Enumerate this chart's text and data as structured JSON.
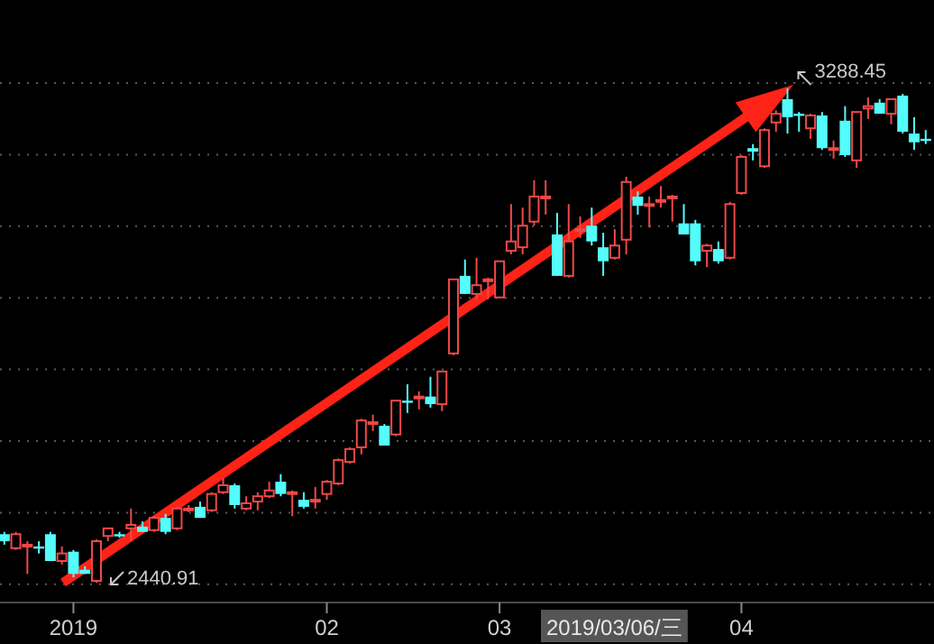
{
  "chart_data": {
    "type": "candlestick",
    "grid": true,
    "categories": [
      null,
      null,
      null,
      null,
      null,
      null,
      "2019",
      null,
      null,
      null,
      null,
      null,
      null,
      null,
      null,
      null,
      null,
      null,
      null,
      null,
      null,
      null,
      null,
      null,
      null,
      null,
      null,
      null,
      "02",
      null,
      null,
      null,
      null,
      null,
      null,
      null,
      null,
      null,
      null,
      null,
      null,
      null,
      null,
      "03",
      null,
      null,
      null,
      null,
      null,
      null,
      null,
      null,
      null,
      null,
      null,
      null,
      null,
      null,
      null,
      null,
      null,
      null,
      null,
      null,
      "04",
      null,
      null,
      null,
      null,
      null,
      null,
      null,
      null,
      null,
      null,
      null,
      null,
      null,
      null,
      null,
      null
    ],
    "ohlc": [
      [
        2524,
        2528,
        2506,
        2512
      ],
      [
        2500,
        2528,
        2497,
        2524
      ],
      [
        2503,
        2512,
        2456,
        2506
      ],
      [
        2503,
        2512,
        2491,
        2500
      ],
      [
        2524,
        2528,
        2478,
        2478
      ],
      [
        2478,
        2503,
        2472,
        2491
      ],
      [
        2494,
        2497,
        2450,
        2456
      ],
      [
        2463,
        2469,
        2456,
        2456
      ],
      [
        2444,
        2515,
        2440.91,
        2512
      ],
      [
        2521,
        2534,
        2512,
        2534
      ],
      [
        2524,
        2528,
        2518,
        2521
      ],
      [
        2534,
        2568,
        2512,
        2540
      ],
      [
        2537,
        2546,
        2528,
        2528
      ],
      [
        2531,
        2555,
        2528,
        2552
      ],
      [
        2552,
        2559,
        2524,
        2528
      ],
      [
        2534,
        2571,
        2531,
        2568
      ],
      [
        2565,
        2574,
        2562,
        2568
      ],
      [
        2571,
        2580,
        2552,
        2552
      ],
      [
        2565,
        2596,
        2562,
        2593
      ],
      [
        2596,
        2620,
        2593,
        2608
      ],
      [
        2608,
        2611,
        2568,
        2574
      ],
      [
        2568,
        2589,
        2565,
        2577
      ],
      [
        2580,
        2596,
        2565,
        2589
      ],
      [
        2589,
        2614,
        2586,
        2599
      ],
      [
        2614,
        2627,
        2589,
        2593
      ],
      [
        2593,
        2599,
        2555,
        2596
      ],
      [
        2583,
        2596,
        2568,
        2571
      ],
      [
        2580,
        2605,
        2568,
        2583
      ],
      [
        2593,
        2617,
        2583,
        2614
      ],
      [
        2611,
        2654,
        2608,
        2651
      ],
      [
        2648,
        2673,
        2645,
        2670
      ],
      [
        2673,
        2722,
        2661,
        2719
      ],
      [
        2713,
        2729,
        2701,
        2716
      ],
      [
        2710,
        2713,
        2676,
        2676
      ],
      [
        2695,
        2753,
        2692,
        2753
      ],
      [
        2753,
        2781,
        2732,
        2750
      ],
      [
        2757,
        2769,
        2738,
        2760
      ],
      [
        2760,
        2794,
        2741,
        2747
      ],
      [
        2747,
        2803,
        2735,
        2803
      ],
      [
        2834,
        2961,
        2831,
        2961
      ],
      [
        2967,
        2995,
        2936,
        2936
      ],
      [
        2936,
        2998,
        2927,
        2951
      ],
      [
        2958,
        2964,
        2927,
        2961
      ],
      [
        2930,
        2992,
        2930,
        2992
      ],
      [
        3010,
        3090,
        3004,
        3026
      ],
      [
        3016,
        3084,
        3004,
        3053
      ],
      [
        3060,
        3131,
        3053,
        3103
      ],
      [
        3100,
        3131,
        3072,
        3103
      ],
      [
        3038,
        3075,
        2967,
        2967
      ],
      [
        2967,
        3090,
        2964,
        3026
      ],
      [
        3044,
        3069,
        3032,
        3047
      ],
      [
        3053,
        3084,
        3019,
        3026
      ],
      [
        3016,
        3041,
        2967,
        2992
      ],
      [
        2998,
        3047,
        2995,
        3019
      ],
      [
        3029,
        3137,
        3004,
        3128
      ],
      [
        3103,
        3112,
        3072,
        3087
      ],
      [
        3087,
        3103,
        3050,
        3090
      ],
      [
        3094,
        3121,
        3084,
        3097
      ],
      [
        3100,
        3106,
        3060,
        3103
      ],
      [
        3057,
        3090,
        3038,
        3038
      ],
      [
        3057,
        3063,
        2985,
        2992
      ],
      [
        3010,
        3022,
        2982,
        3019
      ],
      [
        3013,
        3026,
        2988,
        2992
      ],
      [
        2998,
        3094,
        2995,
        3090
      ],
      [
        3109,
        3174,
        3106,
        3171
      ],
      [
        3186,
        3193,
        3165,
        3180
      ],
      [
        3155,
        3220,
        3152,
        3217
      ],
      [
        3230,
        3251,
        3214,
        3245
      ],
      [
        3270,
        3288.45,
        3211,
        3239
      ],
      [
        3245,
        3248,
        3214,
        3242
      ],
      [
        3220,
        3245,
        3202,
        3242
      ],
      [
        3242,
        3248,
        3183,
        3186
      ],
      [
        3183,
        3199,
        3168,
        3186
      ],
      [
        3233,
        3258,
        3171,
        3174
      ],
      [
        3165,
        3248,
        3152,
        3248
      ],
      [
        3254,
        3273,
        3236,
        3258
      ],
      [
        3264,
        3270,
        3245,
        3245
      ],
      [
        3245,
        3270,
        3227,
        3270
      ],
      [
        3276,
        3279,
        3211,
        3214
      ],
      [
        3211,
        3239,
        3183,
        3196
      ],
      [
        3202,
        3217,
        3193,
        3199
      ]
    ],
    "colors": [
      "#54fcfc",
      "#f04848",
      "#f04848",
      "#54fcfc",
      "#54fcfc",
      "#f04848",
      "#54fcfc",
      "#54fcfc",
      "#f04848",
      "#f04848",
      "#54fcfc",
      "#f04848",
      "#54fcfc",
      "#f04848",
      "#54fcfc",
      "#f04848",
      "#f04848",
      "#54fcfc",
      "#f04848",
      "#f04848",
      "#54fcfc",
      "#f04848",
      "#f04848",
      "#f04848",
      "#54fcfc",
      "#f04848",
      "#54fcfc",
      "#f04848",
      "#f04848",
      "#f04848",
      "#f04848",
      "#f04848",
      "#f04848",
      "#54fcfc",
      "#f04848",
      "#54fcfc",
      "#f04848",
      "#54fcfc",
      "#f04848",
      "#f04848",
      "#54fcfc",
      "#f04848",
      "#f04848",
      "#f04848",
      "#f04848",
      "#f04848",
      "#f04848",
      "#f04848",
      "#54fcfc",
      "#f04848",
      "#f04848",
      "#54fcfc",
      "#54fcfc",
      "#f04848",
      "#f04848",
      "#54fcfc",
      "#f04848",
      "#f04848",
      "#f04848",
      "#54fcfc",
      "#54fcfc",
      "#f04848",
      "#54fcfc",
      "#f04848",
      "#f04848",
      "#54fcfc",
      "#f04848",
      "#f04848",
      "#54fcfc",
      "#54fcfc",
      "#f04848",
      "#54fcfc",
      "#f04848",
      "#54fcfc",
      "#f04848",
      "#f04848",
      "#54fcfc",
      "#f04848",
      "#54fcfc",
      "#54fcfc",
      "#54fcfc"
    ],
    "annotations": [
      "2440.91",
      "3288.45",
      "2019/03/06/三"
    ]
  }
}
